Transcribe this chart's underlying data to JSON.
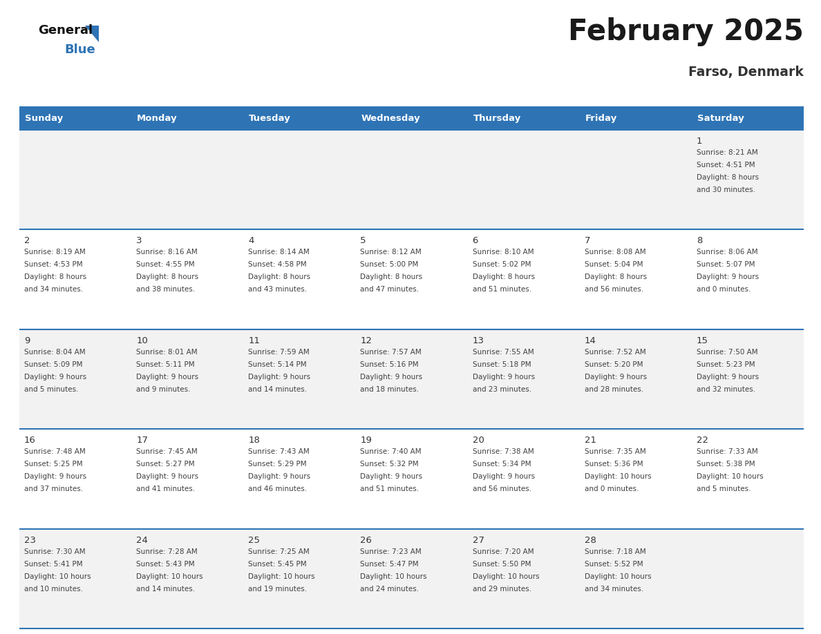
{
  "title": "February 2025",
  "subtitle": "Farso, Denmark",
  "header_color": "#2E74B5",
  "header_text_color": "#FFFFFF",
  "day_names": [
    "Sunday",
    "Monday",
    "Tuesday",
    "Wednesday",
    "Thursday",
    "Friday",
    "Saturday"
  ],
  "days": [
    {
      "day": 1,
      "col": 6,
      "row": 0,
      "sunrise": "8:21 AM",
      "sunset": "4:51 PM",
      "daylight_h": "8 hours",
      "daylight_m": "30 minutes."
    },
    {
      "day": 2,
      "col": 0,
      "row": 1,
      "sunrise": "8:19 AM",
      "sunset": "4:53 PM",
      "daylight_h": "8 hours",
      "daylight_m": "34 minutes."
    },
    {
      "day": 3,
      "col": 1,
      "row": 1,
      "sunrise": "8:16 AM",
      "sunset": "4:55 PM",
      "daylight_h": "8 hours",
      "daylight_m": "38 minutes."
    },
    {
      "day": 4,
      "col": 2,
      "row": 1,
      "sunrise": "8:14 AM",
      "sunset": "4:58 PM",
      "daylight_h": "8 hours",
      "daylight_m": "43 minutes."
    },
    {
      "day": 5,
      "col": 3,
      "row": 1,
      "sunrise": "8:12 AM",
      "sunset": "5:00 PM",
      "daylight_h": "8 hours",
      "daylight_m": "47 minutes."
    },
    {
      "day": 6,
      "col": 4,
      "row": 1,
      "sunrise": "8:10 AM",
      "sunset": "5:02 PM",
      "daylight_h": "8 hours",
      "daylight_m": "51 minutes."
    },
    {
      "day": 7,
      "col": 5,
      "row": 1,
      "sunrise": "8:08 AM",
      "sunset": "5:04 PM",
      "daylight_h": "8 hours",
      "daylight_m": "56 minutes."
    },
    {
      "day": 8,
      "col": 6,
      "row": 1,
      "sunrise": "8:06 AM",
      "sunset": "5:07 PM",
      "daylight_h": "9 hours",
      "daylight_m": "0 minutes."
    },
    {
      "day": 9,
      "col": 0,
      "row": 2,
      "sunrise": "8:04 AM",
      "sunset": "5:09 PM",
      "daylight_h": "9 hours",
      "daylight_m": "5 minutes."
    },
    {
      "day": 10,
      "col": 1,
      "row": 2,
      "sunrise": "8:01 AM",
      "sunset": "5:11 PM",
      "daylight_h": "9 hours",
      "daylight_m": "9 minutes."
    },
    {
      "day": 11,
      "col": 2,
      "row": 2,
      "sunrise": "7:59 AM",
      "sunset": "5:14 PM",
      "daylight_h": "9 hours",
      "daylight_m": "14 minutes."
    },
    {
      "day": 12,
      "col": 3,
      "row": 2,
      "sunrise": "7:57 AM",
      "sunset": "5:16 PM",
      "daylight_h": "9 hours",
      "daylight_m": "18 minutes."
    },
    {
      "day": 13,
      "col": 4,
      "row": 2,
      "sunrise": "7:55 AM",
      "sunset": "5:18 PM",
      "daylight_h": "9 hours",
      "daylight_m": "23 minutes."
    },
    {
      "day": 14,
      "col": 5,
      "row": 2,
      "sunrise": "7:52 AM",
      "sunset": "5:20 PM",
      "daylight_h": "9 hours",
      "daylight_m": "28 minutes."
    },
    {
      "day": 15,
      "col": 6,
      "row": 2,
      "sunrise": "7:50 AM",
      "sunset": "5:23 PM",
      "daylight_h": "9 hours",
      "daylight_m": "32 minutes."
    },
    {
      "day": 16,
      "col": 0,
      "row": 3,
      "sunrise": "7:48 AM",
      "sunset": "5:25 PM",
      "daylight_h": "9 hours",
      "daylight_m": "37 minutes."
    },
    {
      "day": 17,
      "col": 1,
      "row": 3,
      "sunrise": "7:45 AM",
      "sunset": "5:27 PM",
      "daylight_h": "9 hours",
      "daylight_m": "41 minutes."
    },
    {
      "day": 18,
      "col": 2,
      "row": 3,
      "sunrise": "7:43 AM",
      "sunset": "5:29 PM",
      "daylight_h": "9 hours",
      "daylight_m": "46 minutes."
    },
    {
      "day": 19,
      "col": 3,
      "row": 3,
      "sunrise": "7:40 AM",
      "sunset": "5:32 PM",
      "daylight_h": "9 hours",
      "daylight_m": "51 minutes."
    },
    {
      "day": 20,
      "col": 4,
      "row": 3,
      "sunrise": "7:38 AM",
      "sunset": "5:34 PM",
      "daylight_h": "9 hours",
      "daylight_m": "56 minutes."
    },
    {
      "day": 21,
      "col": 5,
      "row": 3,
      "sunrise": "7:35 AM",
      "sunset": "5:36 PM",
      "daylight_h": "10 hours",
      "daylight_m": "0 minutes."
    },
    {
      "day": 22,
      "col": 6,
      "row": 3,
      "sunrise": "7:33 AM",
      "sunset": "5:38 PM",
      "daylight_h": "10 hours",
      "daylight_m": "5 minutes."
    },
    {
      "day": 23,
      "col": 0,
      "row": 4,
      "sunrise": "7:30 AM",
      "sunset": "5:41 PM",
      "daylight_h": "10 hours",
      "daylight_m": "10 minutes."
    },
    {
      "day": 24,
      "col": 1,
      "row": 4,
      "sunrise": "7:28 AM",
      "sunset": "5:43 PM",
      "daylight_h": "10 hours",
      "daylight_m": "14 minutes."
    },
    {
      "day": 25,
      "col": 2,
      "row": 4,
      "sunrise": "7:25 AM",
      "sunset": "5:45 PM",
      "daylight_h": "10 hours",
      "daylight_m": "19 minutes."
    },
    {
      "day": 26,
      "col": 3,
      "row": 4,
      "sunrise": "7:23 AM",
      "sunset": "5:47 PM",
      "daylight_h": "10 hours",
      "daylight_m": "24 minutes."
    },
    {
      "day": 27,
      "col": 4,
      "row": 4,
      "sunrise": "7:20 AM",
      "sunset": "5:50 PM",
      "daylight_h": "10 hours",
      "daylight_m": "29 minutes."
    },
    {
      "day": 28,
      "col": 5,
      "row": 4,
      "sunrise": "7:18 AM",
      "sunset": "5:52 PM",
      "daylight_h": "10 hours",
      "daylight_m": "34 minutes."
    }
  ],
  "num_rows": 5,
  "num_cols": 7,
  "bg_color_row0": "#F2F2F2",
  "bg_color_row1": "#FFFFFF",
  "bg_color_row2": "#F2F2F2",
  "bg_color_row3": "#FFFFFF",
  "bg_color_row4": "#F2F2F2",
  "cell_text_color": "#404040",
  "day_num_color": "#333333",
  "line_color": "#2E74B5",
  "title_color": "#1a1a1a",
  "subtitle_color": "#333333",
  "logo_general_color": "#111111",
  "logo_blue_color": "#2E74B5",
  "triangle_color": "#2E74B5"
}
